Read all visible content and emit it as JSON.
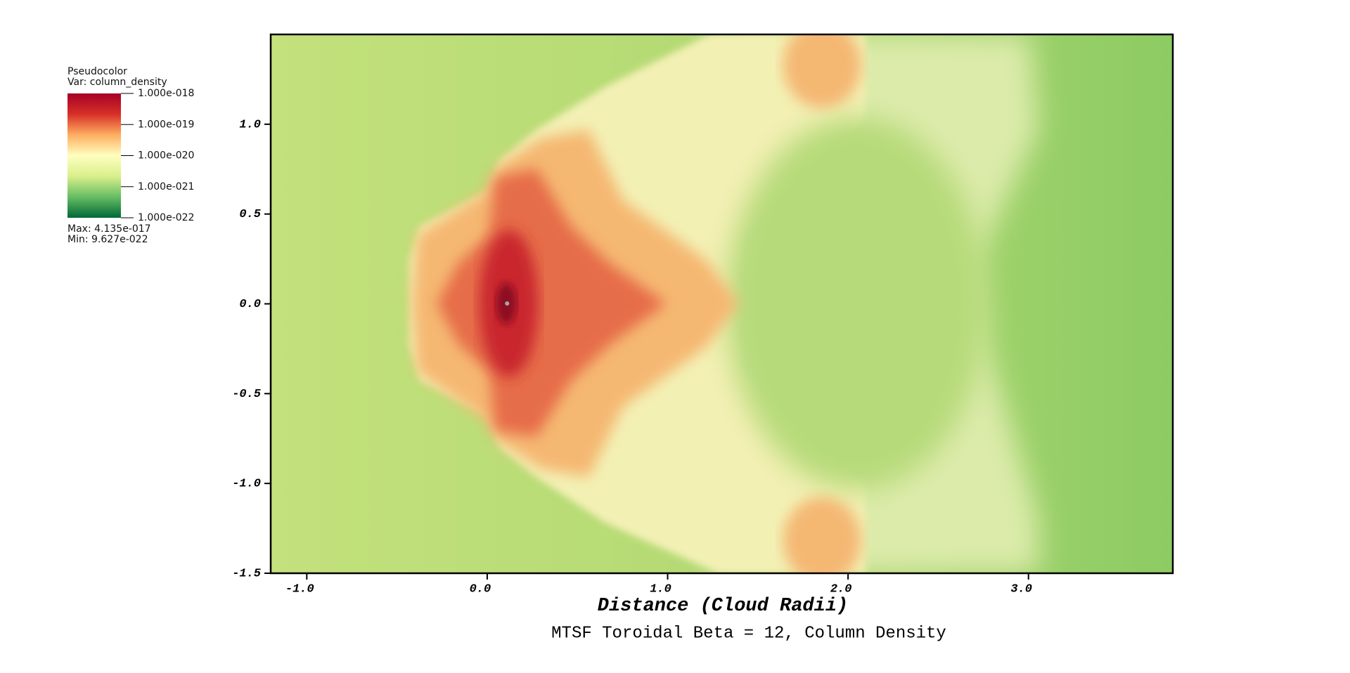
{
  "chart_data": {
    "type": "image",
    "title": "MTSF Toroidal Beta = 12, Column Density",
    "x_label": "Distance (Cloud Radii)",
    "xlim": [
      -1.2,
      3.8
    ],
    "ylim": [
      -1.5,
      1.5
    ],
    "xticks": [
      {
        "value": -1,
        "label": "-1.0"
      },
      {
        "value": 0,
        "label": "0.0"
      },
      {
        "value": 1,
        "label": "1.0"
      },
      {
        "value": 2,
        "label": "2.0"
      },
      {
        "value": 3,
        "label": "3.0"
      }
    ],
    "yticks": [
      {
        "value": -1.5,
        "label": "-1.5"
      },
      {
        "value": -1,
        "label": "-1.0"
      },
      {
        "value": -0.5,
        "label": "-0.5"
      },
      {
        "value": 0,
        "label": "0.0"
      },
      {
        "value": 0.5,
        "label": "0.5"
      },
      {
        "value": 1,
        "label": "1.0"
      }
    ],
    "legend": {
      "title": "Pseudocolor",
      "variable": "Var: column_density",
      "scale": "log",
      "range": [
        1e-22,
        1e-18
      ],
      "ticks": [
        {
          "value": 1e-18,
          "label": "1.000e-018"
        },
        {
          "value": 1e-19,
          "label": "1.000e-019"
        },
        {
          "value": 1e-20,
          "label": "1.000e-020"
        },
        {
          "value": 1e-21,
          "label": "1.000e-021"
        },
        {
          "value": 1e-22,
          "label": "1.000e-022"
        }
      ],
      "colormap": [
        "#006837",
        "#66bd63",
        "#d9ef8b",
        "#ffffbf",
        "#fdae61",
        "#d73027",
        "#a50026"
      ],
      "max_label": "Max:  4.135e-017",
      "min_label": "Min:  9.627e-022",
      "corner": "upper left"
    }
  }
}
